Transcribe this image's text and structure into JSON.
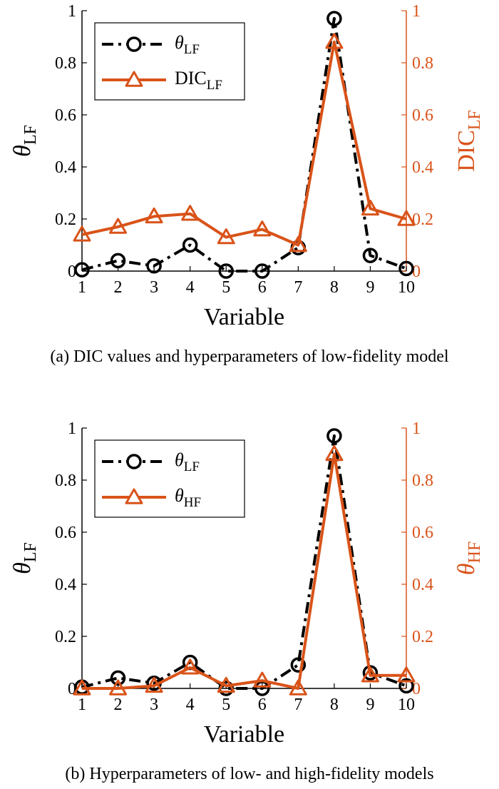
{
  "chart_data": [
    {
      "type": "line",
      "panel": "a",
      "caption": "(a) DIC values and hyperparameters of low-fidelity model",
      "x": [
        1,
        2,
        3,
        4,
        5,
        6,
        7,
        8,
        9,
        10
      ],
      "xlabel": "Variable",
      "xlim": [
        1,
        10
      ],
      "ylim_left": [
        0,
        1
      ],
      "ylim_right": [
        0,
        1
      ],
      "yticks": [
        "0",
        "0.2",
        "0.4",
        "0.6",
        "0.8",
        "1"
      ],
      "xticks": [
        "1",
        "2",
        "3",
        "4",
        "5",
        "6",
        "7",
        "8",
        "9",
        "10"
      ],
      "ylabel_left": {
        "main": "θ",
        "sub": "LF"
      },
      "ylabel_right": {
        "main": "DIC",
        "sub": "LF"
      },
      "legend_position": "top-left",
      "grid": false,
      "colors": {
        "left": "#000000",
        "right": "#d95319"
      },
      "series": [
        {
          "name": "θ",
          "name_sub": "LF",
          "axis": "left",
          "marker": "circle",
          "line": "dash-dot",
          "values": [
            0.005,
            0.04,
            0.02,
            0.1,
            0.0,
            0.0,
            0.09,
            0.97,
            0.06,
            0.01
          ]
        },
        {
          "name": "DIC",
          "name_sub": "LF",
          "axis": "right",
          "marker": "triangle",
          "line": "solid",
          "values": [
            0.14,
            0.17,
            0.21,
            0.22,
            0.13,
            0.16,
            0.1,
            0.88,
            0.24,
            0.2
          ]
        }
      ]
    },
    {
      "type": "line",
      "panel": "b",
      "caption": "(b) Hyperparameters of low- and high-fidelity models",
      "x": [
        1,
        2,
        3,
        4,
        5,
        6,
        7,
        8,
        9,
        10
      ],
      "xlabel": "Variable",
      "xlim": [
        1,
        10
      ],
      "ylim_left": [
        0,
        1
      ],
      "ylim_right": [
        0,
        1
      ],
      "yticks": [
        "0",
        "0.2",
        "0.4",
        "0.6",
        "0.8",
        "1"
      ],
      "xticks": [
        "1",
        "2",
        "3",
        "4",
        "5",
        "6",
        "7",
        "8",
        "9",
        "10"
      ],
      "ylabel_left": {
        "main": "θ",
        "sub": "LF"
      },
      "ylabel_right": {
        "main": "θ",
        "sub": "HF"
      },
      "legend_position": "top-left",
      "grid": false,
      "colors": {
        "left": "#000000",
        "right": "#d95319"
      },
      "series": [
        {
          "name": "θ",
          "name_sub": "LF",
          "axis": "left",
          "marker": "circle",
          "line": "dash-dot",
          "values": [
            0.005,
            0.04,
            0.02,
            0.1,
            0.0,
            0.0,
            0.09,
            0.97,
            0.06,
            0.01
          ]
        },
        {
          "name": "θ",
          "name_sub": "HF",
          "axis": "right",
          "marker": "triangle",
          "line": "solid",
          "values": [
            0.0,
            0.0,
            0.01,
            0.08,
            0.01,
            0.03,
            0.0,
            0.9,
            0.05,
            0.05
          ]
        }
      ]
    }
  ]
}
